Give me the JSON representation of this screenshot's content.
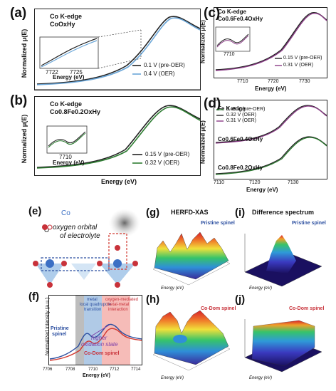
{
  "panels": {
    "a": {
      "label": "(a)",
      "title_line1": "Co K-edge",
      "title_line2": "CoOxHy",
      "ylabel": "Normalized μ(E)",
      "xlabel": "Energy (eV)",
      "legend": [
        "0.1 V (pre-OER)",
        "0.4 V (OER)"
      ],
      "inset": {
        "ticks": [
          "7722",
          "7725"
        ],
        "xlabel": "Energy (eV)"
      }
    },
    "b": {
      "label": "(b)",
      "title_line1": "Co K-edge",
      "title_line2": "Co0.8Fe0.2OxHy",
      "ylabel": "Normalized μ(E)",
      "xlabel": "Energy (eV)",
      "legend": [
        "0.15 V (pre-OER)",
        "0.32 V (OER)"
      ],
      "inset": {
        "ticks": [
          "7710"
        ],
        "xlabel": "Energy (eV)"
      }
    },
    "c": {
      "label": "(c)",
      "title_line1": "Co K-edge",
      "title_line2": "Co0.6Fe0.4OxHy",
      "ylabel": "Normalized μ(E)",
      "xlabel": "Energy (eV)",
      "xticks": [
        "7710",
        "7720",
        "7730"
      ],
      "legend": [
        "0.15 V (pre-OER)",
        "0.31 V (OER)"
      ],
      "inset": {
        "ticks": [
          "7710"
        ],
        "xlabel": "Energy (eV)"
      }
    },
    "d": {
      "label": "(d)",
      "title_line1": "Fe K-edge",
      "ylabel": "Normalized μ(E)",
      "xlabel": "Energy (eV)",
      "xticks": [
        "7110",
        "7120",
        "7130"
      ],
      "legend": [
        "0.15 V (pre-OER)",
        "0.32 V (OER)",
        "0.31 V (OER)"
      ],
      "sample1": "Co0.6Fe0.4OxHy",
      "sample2": "Co0.8Fe0.2OxHy"
    },
    "e": {
      "label": "(e)",
      "co": "Co",
      "o": "O",
      "text1": "oxygen orbital",
      "text2": "of electrolyte"
    },
    "f": {
      "label": "(f)",
      "ylabel": "Normalized intensity (a.u.)",
      "xlabel": "Energy (eV)",
      "xticks": [
        "7706",
        "7708",
        "7710",
        "7712",
        "7714"
      ],
      "blue_note": [
        "metal",
        "local quadrupole",
        "transition"
      ],
      "red_note": [
        "oxygen-mediated",
        "metal-metal",
        "interaction"
      ],
      "pristine": [
        "Pristine",
        "spinel"
      ],
      "codom": "Co-Dom spinel",
      "higher": [
        "higher",
        "oxidation state"
      ]
    },
    "g": {
      "label": "(g)",
      "title": "HERFD-XAS",
      "tag": "Pristine spinel"
    },
    "h": {
      "label": "(h)",
      "tag": "Co-Dom spinel"
    },
    "i": {
      "label": "(i)",
      "title": "Difference spectrum",
      "tag": "Pristine spinel"
    },
    "j": {
      "label": "(j)",
      "tag": "Co-Dom spinel"
    },
    "surface_axes": {
      "energy": "Energy (eV)",
      "voltage": "Voltage (V RHE)",
      "intensity": "Intensity (a.u.)"
    }
  },
  "colors": {
    "black_curve": "#222222",
    "blue_curve": "#6aa6d8",
    "green_curve": "#2e7d32",
    "purple_curve": "#8a3a86",
    "blue_band": "#8fb3dc",
    "red_band": "#f2a09a",
    "grey_band": "#bdbdbd"
  }
}
